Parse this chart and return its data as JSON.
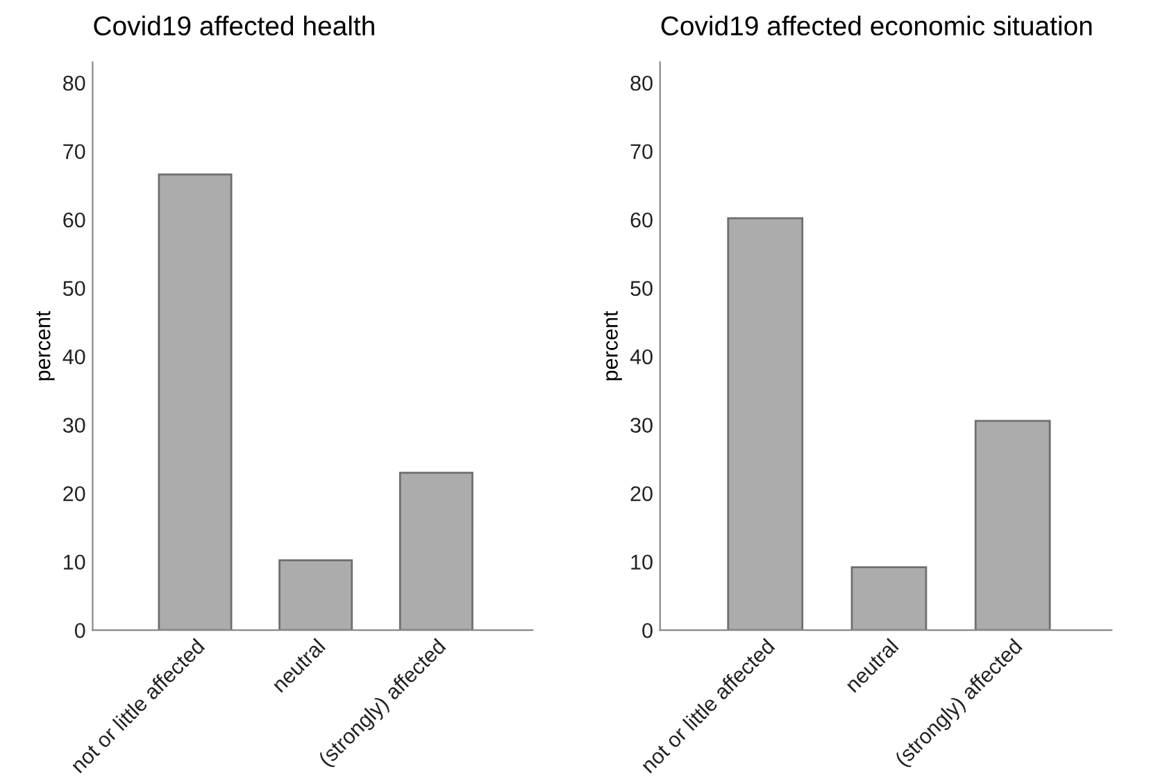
{
  "chart_data": [
    {
      "type": "bar",
      "title": "Covid19 affected health",
      "ylabel": "percent",
      "categories": [
        "not or little affected",
        "neutral",
        "(strongly) affected"
      ],
      "values": [
        66.6,
        10.2,
        23.0
      ],
      "color": "#acacac",
      "ylim": [
        0,
        83
      ],
      "yticks": [
        0,
        10,
        20,
        30,
        40,
        50,
        60,
        70,
        80
      ],
      "grid": false
    },
    {
      "type": "bar",
      "title": "Covid19 affected economic situation",
      "ylabel": "percent",
      "categories": [
        "not or little affected",
        "neutral",
        "(strongly) affected"
      ],
      "values": [
        60.2,
        9.2,
        30.6
      ],
      "color": "#acacac",
      "ylim": [
        0,
        83
      ],
      "yticks": [
        0,
        10,
        20,
        30,
        40,
        50,
        60,
        70,
        80
      ],
      "grid": false
    }
  ]
}
